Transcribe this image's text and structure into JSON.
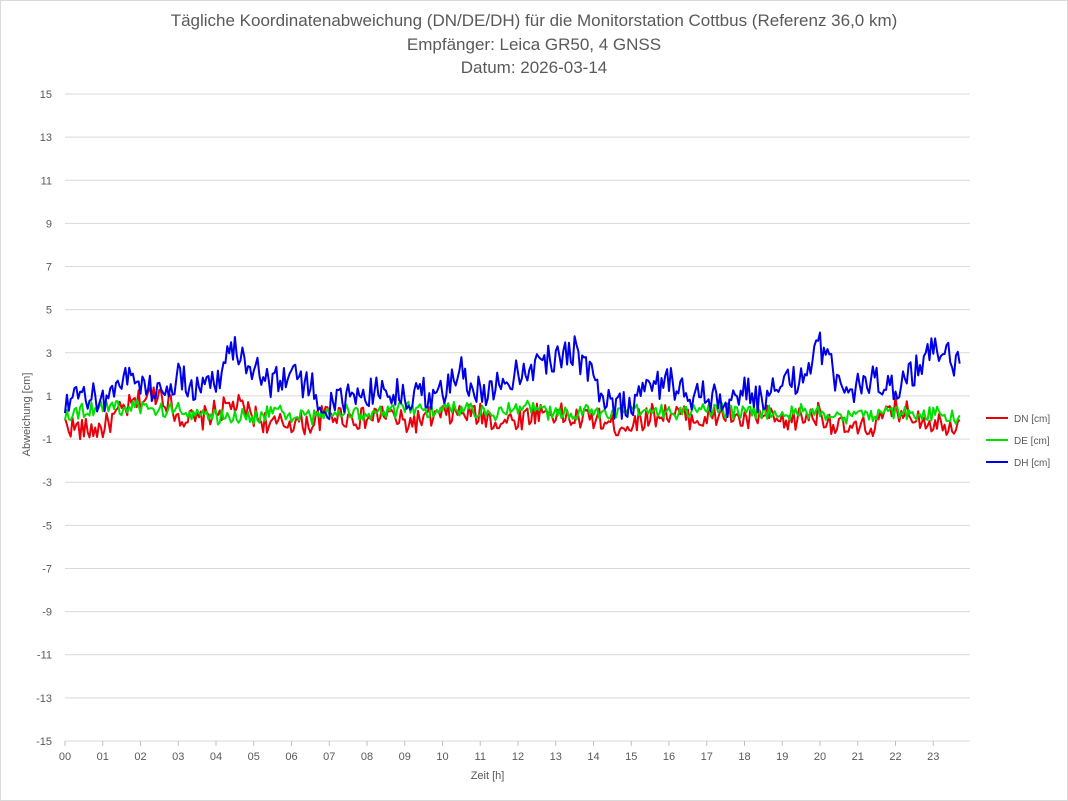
{
  "chart_data": {
    "type": "line",
    "title_lines": [
      "Tägliche Koordinatenabweichung (DN/DE/DH) für die Monitorstation Cottbus (Referenz 36,0 km)",
      "Empfänger: Leica GR50, 4 GNSS",
      "Datum: 2026-03-14"
    ],
    "xlabel": "Zeit [h]",
    "ylabel": "Abweichung [cm]",
    "xlim": [
      0,
      24
    ],
    "ylim": [
      -15,
      15
    ],
    "x_ticks": [
      "00",
      "01",
      "02",
      "03",
      "04",
      "05",
      "06",
      "07",
      "08",
      "09",
      "10",
      "11",
      "12",
      "13",
      "14",
      "15",
      "16",
      "17",
      "18",
      "19",
      "20",
      "21",
      "22",
      "23"
    ],
    "y_ticks": [
      15,
      13,
      11,
      9,
      7,
      5,
      3,
      1,
      -1,
      -3,
      -5,
      -7,
      -9,
      -11,
      -13,
      -15
    ],
    "x": [
      0.0,
      0.5,
      1.0,
      1.5,
      2.0,
      2.5,
      3.0,
      3.5,
      4.0,
      4.5,
      5.0,
      5.5,
      6.0,
      6.5,
      7.0,
      7.5,
      8.0,
      8.5,
      9.0,
      9.5,
      10.0,
      10.5,
      11.0,
      11.5,
      12.0,
      12.5,
      13.0,
      13.5,
      14.0,
      14.5,
      15.0,
      15.5,
      16.0,
      16.5,
      17.0,
      17.5,
      18.0,
      18.5,
      19.0,
      19.5,
      20.0,
      20.5,
      21.0,
      21.5,
      22.0,
      22.5,
      23.0,
      23.5,
      23.7
    ],
    "series": [
      {
        "name": "DN [cm]",
        "color": "#e8000b",
        "values": [
          -0.3,
          -0.6,
          -0.5,
          0.3,
          0.8,
          1.2,
          0.1,
          -0.2,
          0.3,
          0.6,
          0.1,
          -0.4,
          -0.2,
          -0.3,
          0.2,
          0.0,
          -0.1,
          0.2,
          -0.3,
          -0.1,
          0.1,
          0.2,
          0.1,
          -0.2,
          -0.1,
          0.3,
          0.2,
          -0.1,
          0.0,
          -0.4,
          -0.3,
          0.1,
          0.2,
          0.0,
          -0.1,
          0.2,
          -0.2,
          0.1,
          -0.3,
          0.0,
          0.2,
          -0.5,
          -0.6,
          -0.3,
          0.4,
          0.1,
          -0.2,
          -0.3,
          -0.1
        ]
      },
      {
        "name": "DE [cm]",
        "color": "#00e000",
        "values": [
          0.2,
          0.3,
          0.6,
          0.4,
          0.5,
          0.3,
          0.4,
          0.2,
          0.0,
          0.1,
          0.0,
          0.3,
          0.1,
          0.0,
          0.2,
          0.3,
          0.1,
          0.2,
          0.4,
          0.3,
          0.5,
          0.4,
          0.3,
          0.2,
          0.5,
          0.4,
          0.1,
          0.2,
          0.3,
          0.1,
          0.2,
          0.4,
          0.3,
          0.2,
          0.4,
          0.3,
          0.2,
          0.3,
          0.2,
          0.3,
          0.2,
          0.1,
          0.0,
          0.2,
          0.3,
          0.1,
          0.2,
          0.0,
          0.1
        ]
      },
      {
        "name": "DH [cm]",
        "color": "#0000e6",
        "values": [
          0.4,
          1.0,
          0.8,
          1.9,
          1.6,
          1.2,
          1.8,
          1.3,
          1.8,
          3.3,
          2.3,
          1.6,
          2.1,
          1.4,
          0.5,
          0.8,
          1.2,
          1.3,
          0.9,
          1.2,
          1.0,
          2.1,
          1.2,
          1.5,
          2.2,
          2.5,
          2.8,
          3.2,
          1.6,
          0.6,
          0.7,
          1.4,
          1.8,
          0.9,
          1.0,
          0.6,
          1.2,
          0.8,
          1.4,
          1.9,
          3.2,
          1.6,
          1.3,
          1.8,
          1.5,
          2.2,
          3.1,
          2.7,
          2.5
        ]
      }
    ]
  }
}
